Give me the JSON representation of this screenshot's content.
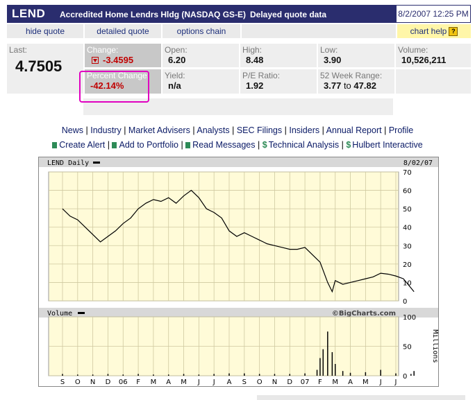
{
  "header": {
    "symbol": "LEND",
    "company": "Accredited Home Lendrs Hldg (NASDAQ GS-E)",
    "delay": "Delayed quote data",
    "datetime": "8/2/2007 12:25 PM"
  },
  "links": {
    "hide_quote": "hide quote",
    "detailed_quote": "detailed quote",
    "options_chain": "options chain",
    "chart_help": "chart help",
    "help_icon": "?"
  },
  "quote": {
    "last_label": "Last:",
    "last": "4.7505",
    "change_label": "Change:",
    "change": "-3.4595",
    "pct_label": "Percent Change:",
    "pct": "-42.14%",
    "open_label": "Open:",
    "open": "6.20",
    "yield_label": "Yield:",
    "yield": "n/a",
    "high_label": "High:",
    "high": "8.48",
    "pe_label": "P/E Ratio:",
    "pe": "1.92",
    "low_label": "Low:",
    "low": "3.90",
    "range_label": "52 Week Range:",
    "range_low": "3.77",
    "range_to": "to",
    "range_high": "47.82",
    "volume_label": "Volume:",
    "volume": "10,526,211"
  },
  "nav": {
    "row1": [
      "News",
      "Industry",
      "Market Advisers",
      "Analysts",
      "SEC Filings",
      "Insiders",
      "Annual Report",
      "Profile"
    ],
    "row2": [
      "Create Alert",
      "Add to Portfolio",
      "Read Messages",
      "Technical Analysis",
      "Hulbert Interactive"
    ],
    "separator": "|"
  },
  "colors": {
    "header_bg": "#2a2d6e",
    "grid_bg": "#fffbd8",
    "accent_red": "#c00000",
    "highlight": "#e000c0"
  },
  "chart_data": [
    {
      "type": "line",
      "title": "LEND Daily",
      "date_label": "8/02/07",
      "footer": "©BigCharts.com",
      "ylim": [
        0,
        70
      ],
      "yticks": [
        0,
        10,
        20,
        30,
        40,
        50,
        60,
        70
      ],
      "xticks": [
        "S",
        "O",
        "N",
        "D",
        "06",
        "F",
        "M",
        "A",
        "M",
        "J",
        "J",
        "A",
        "S",
        "O",
        "N",
        "D",
        "07",
        "F",
        "M",
        "A",
        "M",
        "J",
        "J"
      ],
      "grid": true,
      "series": [
        {
          "x": [
            0,
            0.5,
            1,
            1.5,
            2,
            2.5,
            3,
            3.5,
            4,
            4.5,
            5,
            5.5,
            6,
            6.5,
            7,
            7.5,
            8,
            8.5,
            9,
            9.5,
            10,
            10.5,
            11,
            11.5,
            12,
            12.5,
            13,
            13.5,
            14,
            14.5,
            15,
            15.5,
            16,
            16.5,
            17,
            17.5,
            17.8,
            18,
            18.5,
            19,
            19.5,
            20,
            20.5,
            21,
            21.5,
            22,
            22.5,
            23.2
          ],
          "y": [
            50,
            46,
            44,
            40,
            36,
            32,
            35,
            38,
            42,
            45,
            50,
            53,
            55,
            54,
            56,
            53,
            57,
            60,
            56,
            50,
            48,
            45,
            38,
            35,
            37,
            35,
            33,
            31,
            30,
            29,
            28,
            28,
            29,
            25,
            21,
            10,
            5,
            11,
            9,
            10,
            11,
            12,
            13,
            15,
            14.5,
            13.5,
            12,
            5
          ]
        }
      ]
    },
    {
      "type": "bar",
      "title": "Volume",
      "ylabel": "Millions",
      "ylim": [
        0,
        100
      ],
      "yticks": [
        0,
        50,
        100
      ],
      "grid": true,
      "x": [
        0,
        1,
        2,
        3,
        4,
        5,
        6,
        7,
        8,
        9,
        10,
        11,
        12,
        13,
        14,
        15,
        16,
        16.8,
        17,
        17.2,
        17.5,
        17.8,
        18,
        18.5,
        19,
        20,
        21,
        22,
        23,
        23.2
      ],
      "values": [
        3,
        2,
        2,
        3,
        2,
        3,
        2,
        2,
        3,
        2,
        3,
        4,
        4,
        3,
        3,
        3,
        4,
        10,
        30,
        45,
        75,
        40,
        20,
        8,
        5,
        6,
        10,
        4,
        3,
        8
      ]
    }
  ]
}
